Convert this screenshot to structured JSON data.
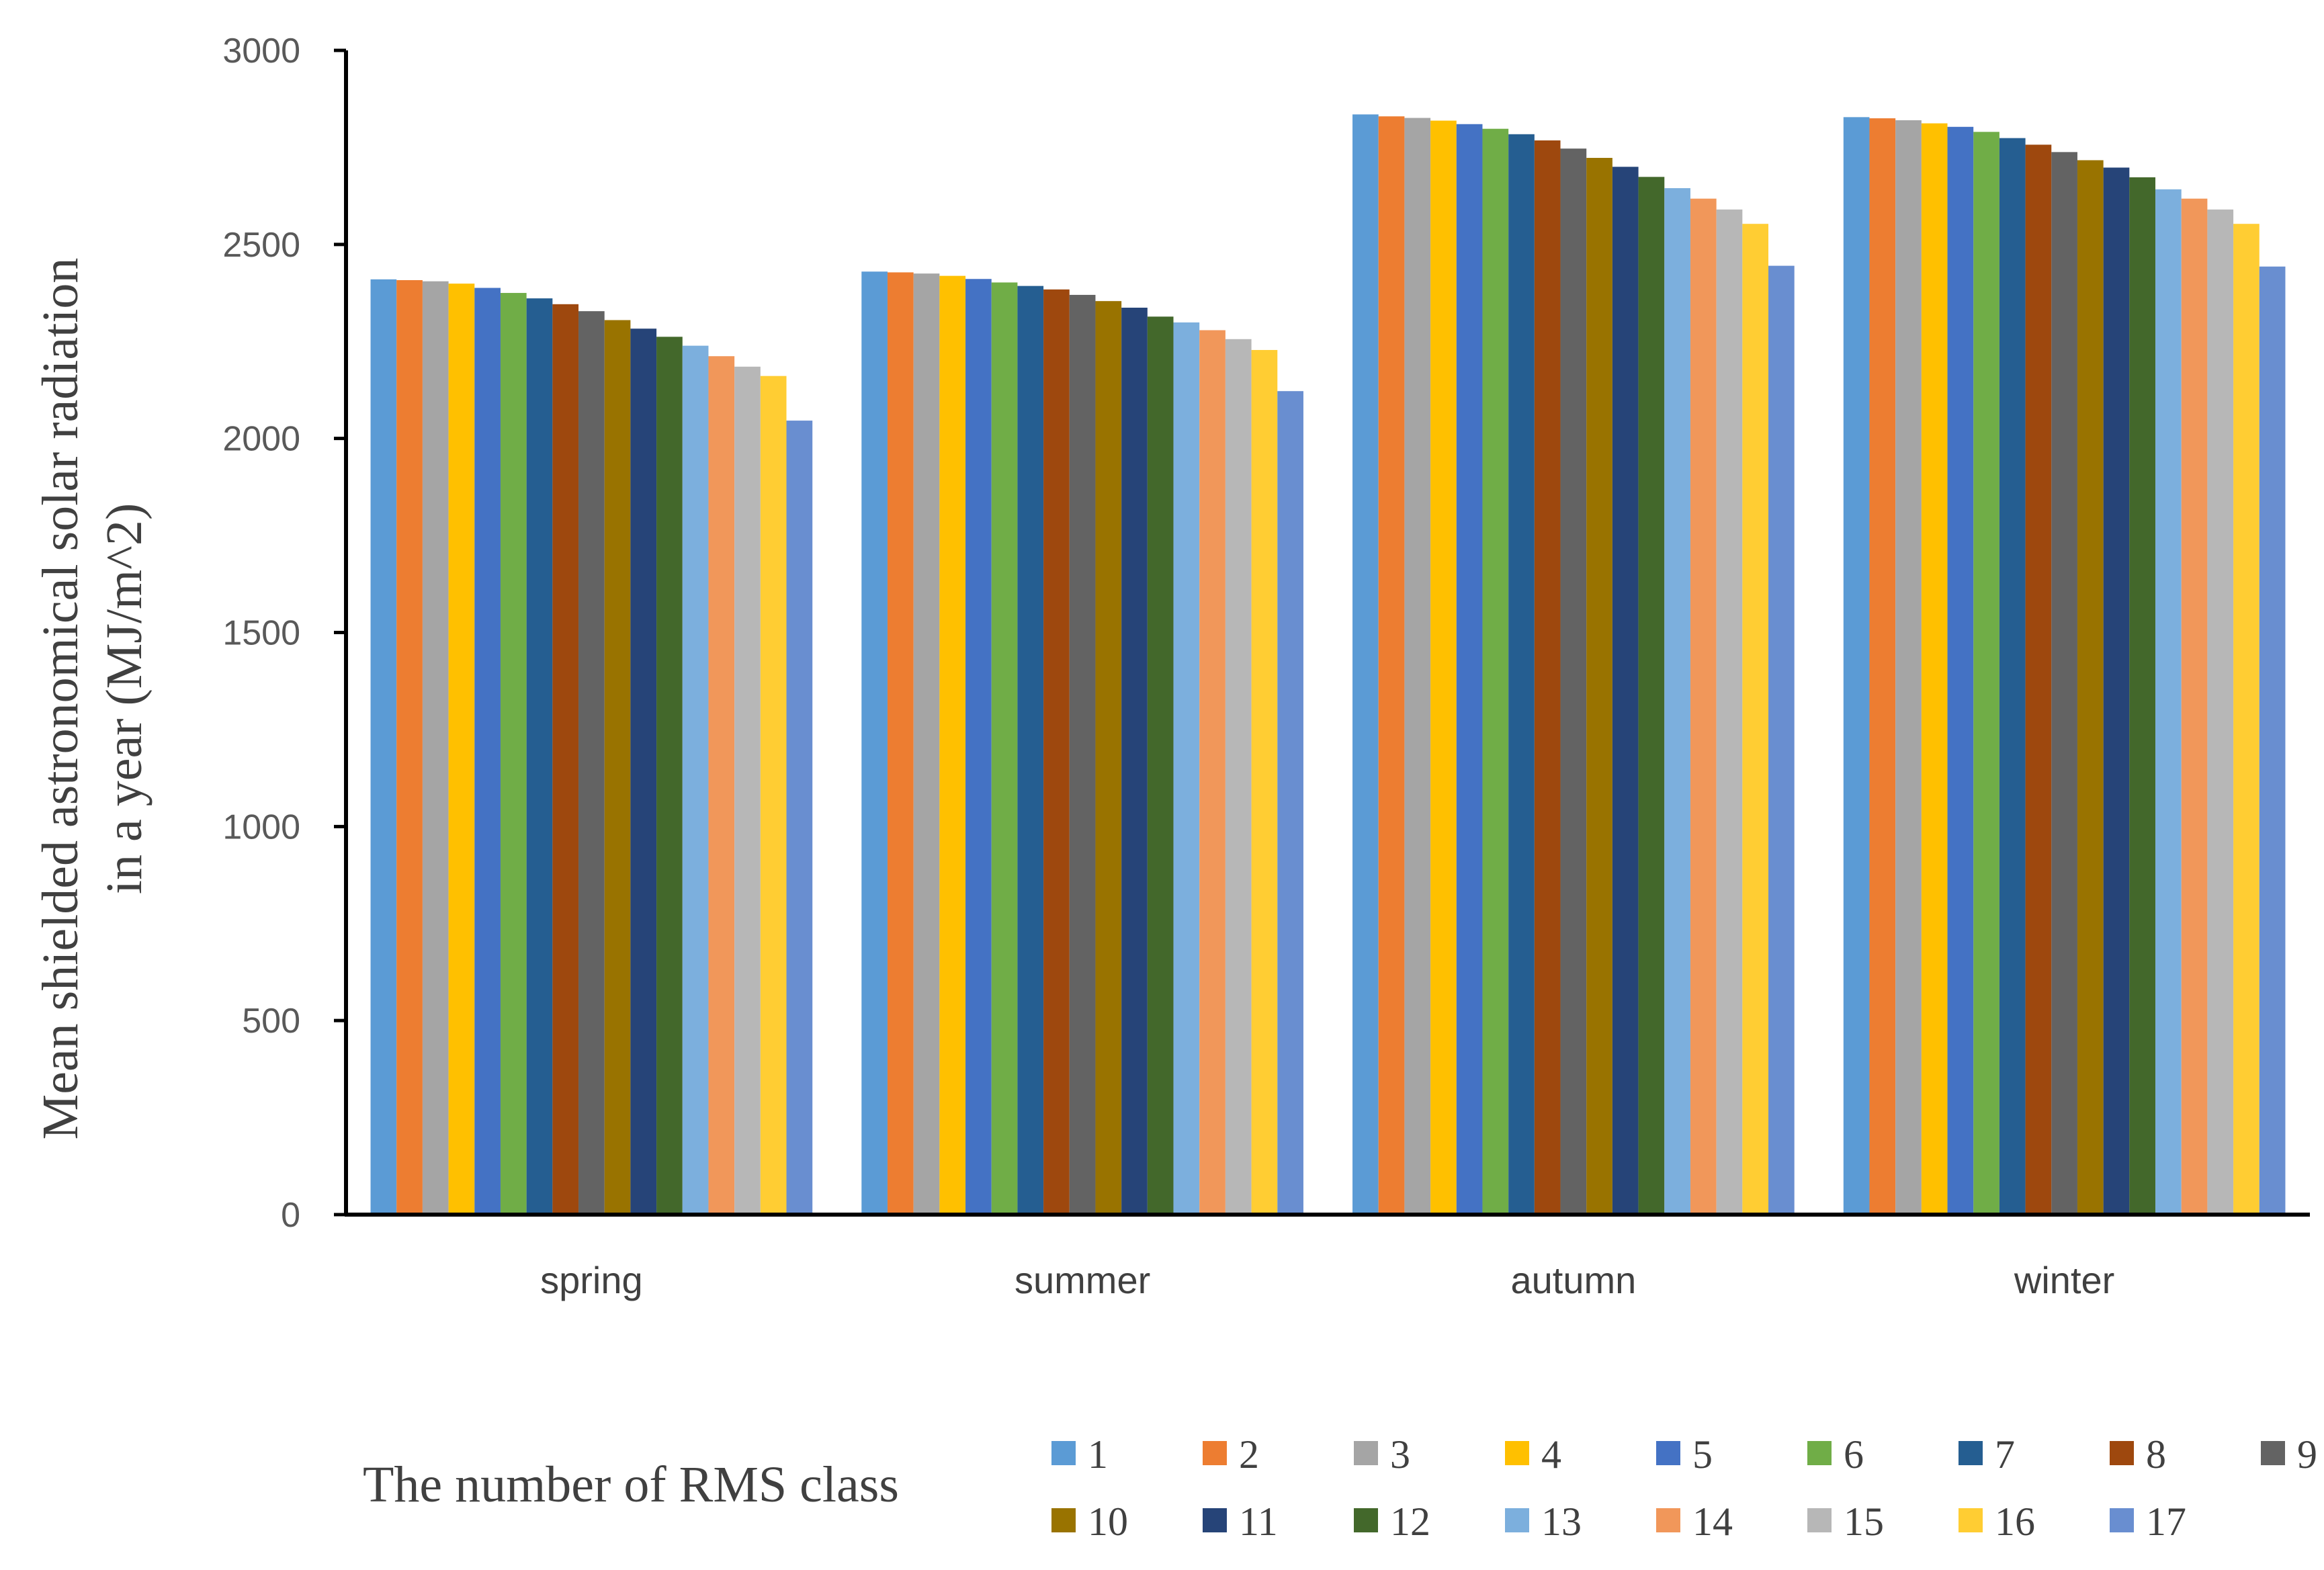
{
  "chart_data": {
    "type": "bar",
    "ylabel_lines": [
      "Mean shielded astronomical solar radiation",
      "in a year (MJ/m^2)"
    ],
    "xlabel": "",
    "ylim": [
      0,
      3000
    ],
    "yticks": [
      0,
      500,
      1000,
      1500,
      2000,
      2500,
      3000
    ],
    "grid": false,
    "legend_title": "The number of RMS class",
    "legend_position": "bottom",
    "categories": [
      "spring",
      "summer",
      "autumn",
      "winter"
    ],
    "series": [
      {
        "name": "1",
        "color": "#5B9BD5",
        "values": [
          2410,
          2430,
          2835,
          2828
        ]
      },
      {
        "name": "2",
        "color": "#ED7D31",
        "values": [
          2408,
          2428,
          2830,
          2825
        ]
      },
      {
        "name": "3",
        "color": "#A5A5A5",
        "values": [
          2405,
          2425,
          2826,
          2820
        ]
      },
      {
        "name": "4",
        "color": "#FFC000",
        "values": [
          2399,
          2419,
          2819,
          2812
        ]
      },
      {
        "name": "5",
        "color": "#4472C4",
        "values": [
          2388,
          2411,
          2810,
          2803
        ]
      },
      {
        "name": "6",
        "color": "#70AD47",
        "values": [
          2375,
          2402,
          2798,
          2790
        ]
      },
      {
        "name": "7",
        "color": "#255E91",
        "values": [
          2361,
          2393,
          2784,
          2774
        ]
      },
      {
        "name": "8",
        "color": "#9E480E",
        "values": [
          2346,
          2384,
          2768,
          2757
        ]
      },
      {
        "name": "9",
        "color": "#636363",
        "values": [
          2328,
          2370,
          2747,
          2738
        ]
      },
      {
        "name": "10",
        "color": "#997300",
        "values": [
          2305,
          2354,
          2723,
          2717
        ]
      },
      {
        "name": "11",
        "color": "#264478",
        "values": [
          2283,
          2337,
          2700,
          2698
        ]
      },
      {
        "name": "12",
        "color": "#43682B",
        "values": [
          2262,
          2314,
          2674,
          2673
        ]
      },
      {
        "name": "13",
        "color": "#7CAFDD",
        "values": [
          2239,
          2299,
          2645,
          2642
        ]
      },
      {
        "name": "14",
        "color": "#F1975A",
        "values": [
          2212,
          2279,
          2618,
          2618
        ]
      },
      {
        "name": "15",
        "color": "#B7B7B7",
        "values": [
          2185,
          2256,
          2590,
          2590
        ]
      },
      {
        "name": "16",
        "color": "#FFCD33",
        "values": [
          2161,
          2228,
          2553,
          2553
        ]
      },
      {
        "name": "17",
        "color": "#698ED0",
        "values": [
          2046,
          2122,
          2445,
          2443
        ]
      }
    ]
  }
}
